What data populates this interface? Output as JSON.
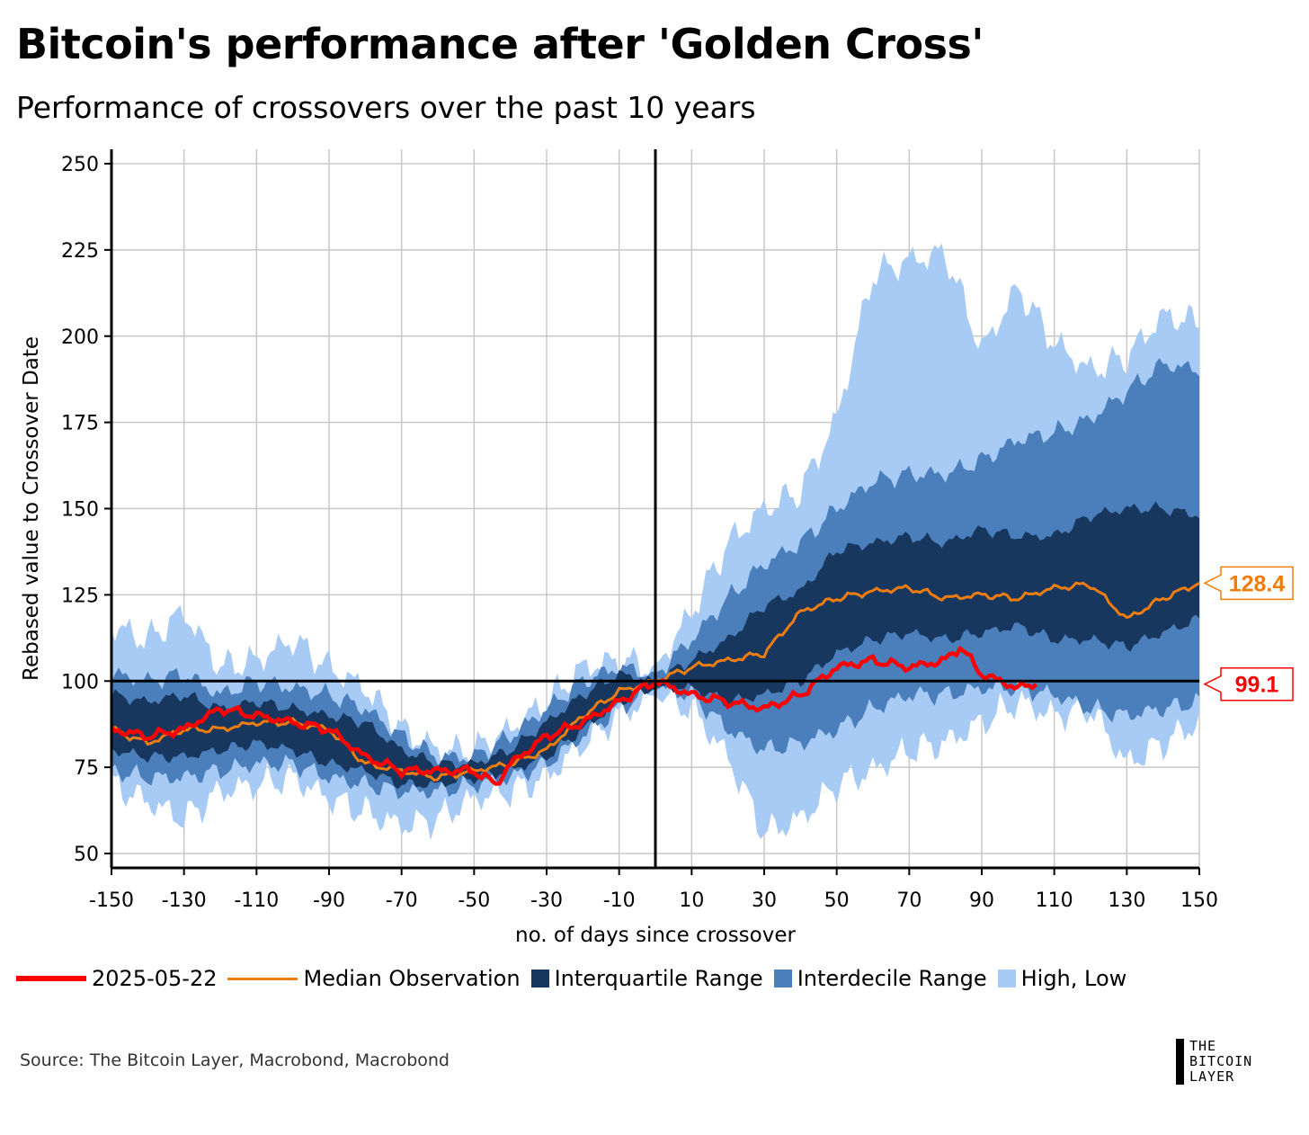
{
  "title": "Bitcoin's performance after 'Golden Cross'",
  "subtitle": "Performance of crossovers over the past 10 years",
  "source": "Source: The Bitcoin Layer, Macrobond, Macrobond",
  "logo": {
    "lines": [
      "THE",
      "BITCOIN",
      "LAYER"
    ]
  },
  "legend": [
    {
      "label": "2025-05-22",
      "type": "line",
      "color": "#ff0000"
    },
    {
      "label": "Median Observation",
      "type": "line",
      "color": "#ee7d10"
    },
    {
      "label": "Interquartile Range",
      "type": "box",
      "color": "#18375e"
    },
    {
      "label": "Interdecile Range",
      "type": "box",
      "color": "#4a7fbc"
    },
    {
      "label": "High, Low",
      "type": "box",
      "color": "#a8cbf5"
    }
  ],
  "chart_data": {
    "type": "area",
    "xlabel": "no. of days since crossover",
    "ylabel": "Rebased value to Crossover Date",
    "xlim": [
      -150,
      150
    ],
    "ylim": [
      46,
      255
    ],
    "xticks": [
      -150,
      -130,
      -110,
      -90,
      -70,
      -50,
      -30,
      -10,
      10,
      30,
      50,
      70,
      90,
      110,
      130,
      150
    ],
    "yticks": [
      50,
      75,
      100,
      125,
      150,
      175,
      200,
      225,
      250
    ],
    "grid": true,
    "reference_lines": {
      "x": 0,
      "y": 100
    },
    "x": [
      -150,
      -140,
      -130,
      -120,
      -110,
      -100,
      -90,
      -80,
      -70,
      -60,
      -50,
      -40,
      -30,
      -20,
      -10,
      0,
      10,
      20,
      30,
      40,
      50,
      60,
      70,
      80,
      90,
      100,
      110,
      120,
      130,
      140,
      150
    ],
    "series": [
      {
        "name": "High, Low",
        "color": "#a8cbf5",
        "upper": [
          116,
          112,
          120,
          104,
          106,
          112,
          104,
          98,
          86,
          80,
          80,
          86,
          94,
          104,
          106,
          104,
          120,
          140,
          150,
          155,
          176,
          218,
          222,
          224,
          196,
          214,
          198,
          190,
          194,
          206,
          204
        ],
        "lower": [
          70,
          65,
          60,
          68,
          70,
          72,
          66,
          62,
          58,
          60,
          66,
          68,
          72,
          82,
          90,
          96,
          92,
          78,
          56,
          60,
          70,
          74,
          80,
          82,
          88,
          94,
          90,
          92,
          76,
          82,
          88
        ]
      },
      {
        "name": "Interdecile Range",
        "color": "#4a7fbc",
        "upper": [
          102,
          100,
          102,
          96,
          100,
          98,
          96,
          92,
          84,
          78,
          78,
          84,
          92,
          100,
          104,
          102,
          112,
          124,
          134,
          140,
          150,
          158,
          160,
          160,
          164,
          170,
          172,
          176,
          184,
          192,
          190
        ],
        "lower": [
          74,
          72,
          72,
          74,
          76,
          76,
          72,
          70,
          68,
          68,
          70,
          72,
          76,
          84,
          92,
          98,
          96,
          86,
          80,
          82,
          86,
          92,
          96,
          96,
          98,
          98,
          96,
          92,
          90,
          92,
          94
        ]
      },
      {
        "name": "Interquartile Range",
        "color": "#18375e",
        "upper": [
          96,
          94,
          96,
          92,
          94,
          92,
          90,
          88,
          80,
          76,
          76,
          80,
          88,
          96,
          102,
          100,
          106,
          112,
          122,
          126,
          138,
          140,
          142,
          140,
          144,
          142,
          142,
          148,
          150,
          150,
          148
        ],
        "lower": [
          80,
          78,
          78,
          80,
          82,
          80,
          76,
          74,
          70,
          70,
          72,
          74,
          78,
          86,
          94,
          98,
          98,
          94,
          96,
          100,
          108,
          112,
          114,
          112,
          114,
          116,
          112,
          112,
          110,
          114,
          118
        ]
      },
      {
        "name": "Median Observation",
        "color": "#ee7d10",
        "values": [
          86,
          82,
          86,
          86,
          88,
          88,
          86,
          76,
          74,
          72,
          74,
          76,
          80,
          90,
          97,
          100,
          104,
          106,
          108,
          120,
          124,
          126,
          127,
          124,
          125,
          124,
          127,
          128,
          118,
          124,
          128.4
        ]
      },
      {
        "name": "2025-05-22",
        "color": "#ff0000",
        "x": [
          -150,
          -140,
          -130,
          -120,
          -110,
          -100,
          -90,
          -80,
          -70,
          -60,
          -50,
          -44,
          -40,
          -30,
          -20,
          -10,
          0,
          10,
          20,
          30,
          40,
          50,
          60,
          70,
          80,
          84,
          90,
          100,
          105
        ],
        "values": [
          86,
          84,
          86,
          92,
          90,
          88,
          86,
          78,
          74,
          74,
          74,
          70,
          76,
          84,
          88,
          94,
          100,
          96,
          94,
          92,
          96,
          104,
          106,
          104,
          106,
          110,
          102,
          98,
          99.1
        ]
      }
    ],
    "end_labels": [
      {
        "text": "128.4",
        "value": 128.4,
        "color": "#ee7d10"
      },
      {
        "text": "99.1",
        "value": 99.1,
        "color": "#ff0000"
      }
    ]
  }
}
